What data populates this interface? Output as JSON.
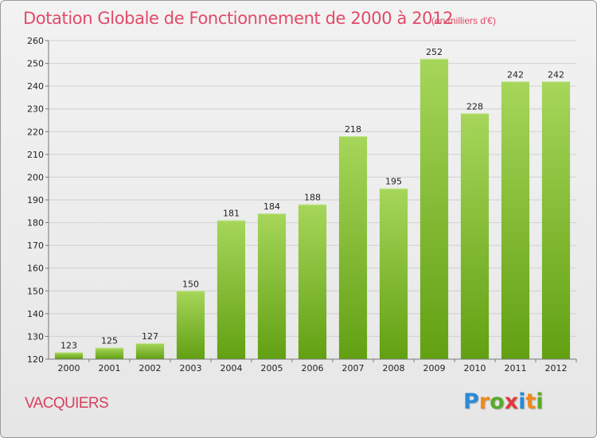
{
  "header": {
    "title": "Dotation Globale de Fonctionnement de 2000 à 2012",
    "unit": "(en milliers d'€)"
  },
  "footer": {
    "commune": "VACQUIERS",
    "logo_letters": [
      "P",
      "r",
      "o",
      "x",
      "i",
      "t",
      "i"
    ],
    "logo_colors": [
      "#2a8ad8",
      "#f08a1c",
      "#5aaa2a",
      "#e23a3a",
      "#2a8ad8",
      "#f08a1c",
      "#5aaa2a"
    ]
  },
  "colors": {
    "bar_light": "#a6d65a",
    "bar_dark": "#62a012",
    "grid": "#d0d0d0",
    "axis": "#777777"
  },
  "chart_data": {
    "type": "bar",
    "title": "Dotation Globale de Fonctionnement de 2000 à 2012",
    "xlabel": "",
    "ylabel": "",
    "categories": [
      "2000",
      "2001",
      "2002",
      "2003",
      "2004",
      "2005",
      "2006",
      "2007",
      "2008",
      "2009",
      "2010",
      "2011",
      "2012"
    ],
    "values": [
      123,
      125,
      127,
      150,
      181,
      184,
      188,
      218,
      195,
      252,
      228,
      242,
      242
    ],
    "ylim": [
      120,
      260
    ],
    "yticks": [
      120,
      130,
      140,
      150,
      160,
      170,
      180,
      190,
      200,
      210,
      220,
      230,
      240,
      250,
      260
    ],
    "grid": true,
    "legend": "none"
  }
}
